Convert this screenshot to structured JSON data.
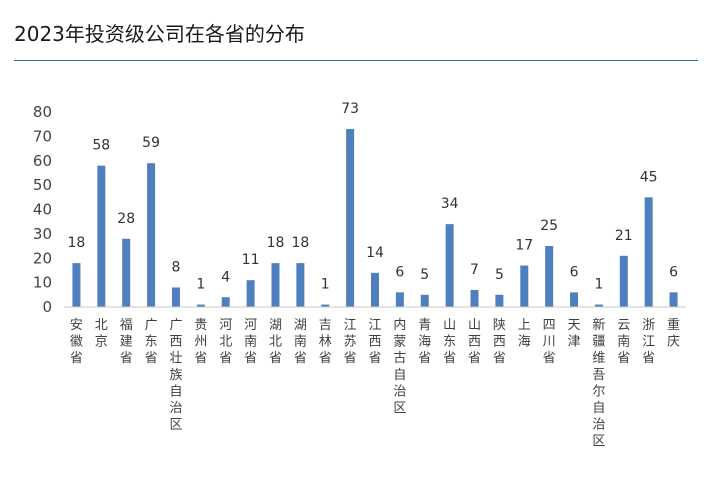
{
  "title": "2023年投资级公司在各省的分布",
  "colors": {
    "bar": "#4f7fbe",
    "axis": "#c8c8c8",
    "rule": "#3b6f95"
  },
  "chart_data": {
    "type": "bar",
    "title": "2023年投资级公司在各省的分布",
    "xlabel": "",
    "ylabel": "",
    "ylim": [
      0,
      80
    ],
    "yticks": [
      0,
      10,
      20,
      30,
      40,
      50,
      60,
      70,
      80
    ],
    "grid": false,
    "legend": "none",
    "categories": [
      "安徽省",
      "北京",
      "福建省",
      "广东省",
      "广西壮族自治区",
      "贵州省",
      "河北省",
      "河南省",
      "湖北省",
      "湖南省",
      "吉林省",
      "江苏省",
      "江西省",
      "内蒙古自治区",
      "青海省",
      "山东省",
      "山西省",
      "陕西省",
      "上海",
      "四川省",
      "天津",
      "新疆维吾尔自治区",
      "云南省",
      "浙江省",
      "重庆"
    ],
    "values": [
      18,
      58,
      28,
      59,
      8,
      1,
      4,
      11,
      18,
      18,
      1,
      73,
      14,
      6,
      5,
      34,
      7,
      5,
      17,
      25,
      6,
      1,
      21,
      45,
      6
    ]
  }
}
